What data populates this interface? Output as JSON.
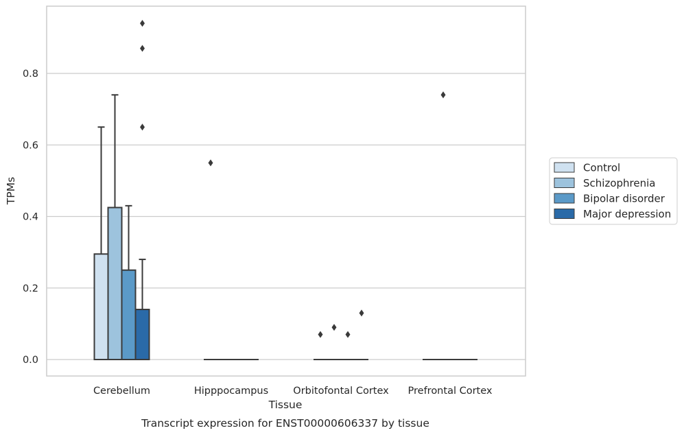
{
  "chart_data": {
    "type": "box",
    "title": "",
    "caption": "Transcript expression for ENST00000606337 by tissue",
    "xlabel": "Tissue",
    "ylabel": "TPMs",
    "ylim": [
      -0.045,
      0.98
    ],
    "yticks": [
      "0.0",
      "0.2",
      "0.4",
      "0.6",
      "0.8"
    ],
    "ytick_values": [
      0.0,
      0.2,
      0.4,
      0.6,
      0.8
    ],
    "categories": [
      "Cerebellum",
      "Hipppocampus",
      "Orbitofontal Cortex",
      "Prefrontal Cortex"
    ],
    "grid": "horizontal",
    "legend_position": "right",
    "series": [
      {
        "name": "Control",
        "color": "#cfe1f0",
        "boxes": [
          {
            "q1": 0.0,
            "median": 0.0,
            "q3": 0.295,
            "whisker_low": 0.0,
            "whisker_high": 0.65,
            "outliers": []
          },
          {
            "q1": 0.0,
            "median": 0.0,
            "q3": 0.0,
            "whisker_low": 0.0,
            "whisker_high": 0.0,
            "outliers": [
              0.55
            ]
          },
          {
            "q1": 0.0,
            "median": 0.0,
            "q3": 0.0,
            "whisker_low": 0.0,
            "whisker_high": 0.0,
            "outliers": [
              0.07
            ]
          },
          {
            "q1": 0.0,
            "median": 0.0,
            "q3": 0.0,
            "whisker_low": 0.0,
            "whisker_high": 0.0,
            "outliers": []
          }
        ]
      },
      {
        "name": "Schizophrenia",
        "color": "#9dc3dd",
        "boxes": [
          {
            "q1": 0.0,
            "median": 0.0,
            "q3": 0.425,
            "whisker_low": 0.0,
            "whisker_high": 0.74,
            "outliers": []
          },
          {
            "q1": 0.0,
            "median": 0.0,
            "q3": 0.0,
            "whisker_low": 0.0,
            "whisker_high": 0.0,
            "outliers": []
          },
          {
            "q1": 0.0,
            "median": 0.0,
            "q3": 0.0,
            "whisker_low": 0.0,
            "whisker_high": 0.0,
            "outliers": [
              0.09
            ]
          },
          {
            "q1": 0.0,
            "median": 0.0,
            "q3": 0.0,
            "whisker_low": 0.0,
            "whisker_high": 0.0,
            "outliers": [
              0.74
            ]
          }
        ]
      },
      {
        "name": "Bipolar disorder",
        "color": "#5b9ac8",
        "boxes": [
          {
            "q1": 0.0,
            "median": 0.0,
            "q3": 0.25,
            "whisker_low": 0.0,
            "whisker_high": 0.43,
            "outliers": []
          },
          {
            "q1": 0.0,
            "median": 0.0,
            "q3": 0.0,
            "whisker_low": 0.0,
            "whisker_high": 0.0,
            "outliers": []
          },
          {
            "q1": 0.0,
            "median": 0.0,
            "q3": 0.0,
            "whisker_low": 0.0,
            "whisker_high": 0.0,
            "outliers": [
              0.07
            ]
          },
          {
            "q1": 0.0,
            "median": 0.0,
            "q3": 0.0,
            "whisker_low": 0.0,
            "whisker_high": 0.0,
            "outliers": []
          }
        ]
      },
      {
        "name": "Major depression",
        "color": "#2a6aa8",
        "boxes": [
          {
            "q1": 0.0,
            "median": 0.0,
            "q3": 0.14,
            "whisker_low": 0.0,
            "whisker_high": 0.28,
            "outliers": [
              0.65,
              0.87,
              0.94
            ]
          },
          {
            "q1": 0.0,
            "median": 0.0,
            "q3": 0.0,
            "whisker_low": 0.0,
            "whisker_high": 0.0,
            "outliers": []
          },
          {
            "q1": 0.0,
            "median": 0.0,
            "q3": 0.0,
            "whisker_low": 0.0,
            "whisker_high": 0.0,
            "outliers": [
              0.13
            ]
          },
          {
            "q1": 0.0,
            "median": 0.0,
            "q3": 0.0,
            "whisker_low": 0.0,
            "whisker_high": 0.0,
            "outliers": []
          }
        ]
      }
    ]
  }
}
